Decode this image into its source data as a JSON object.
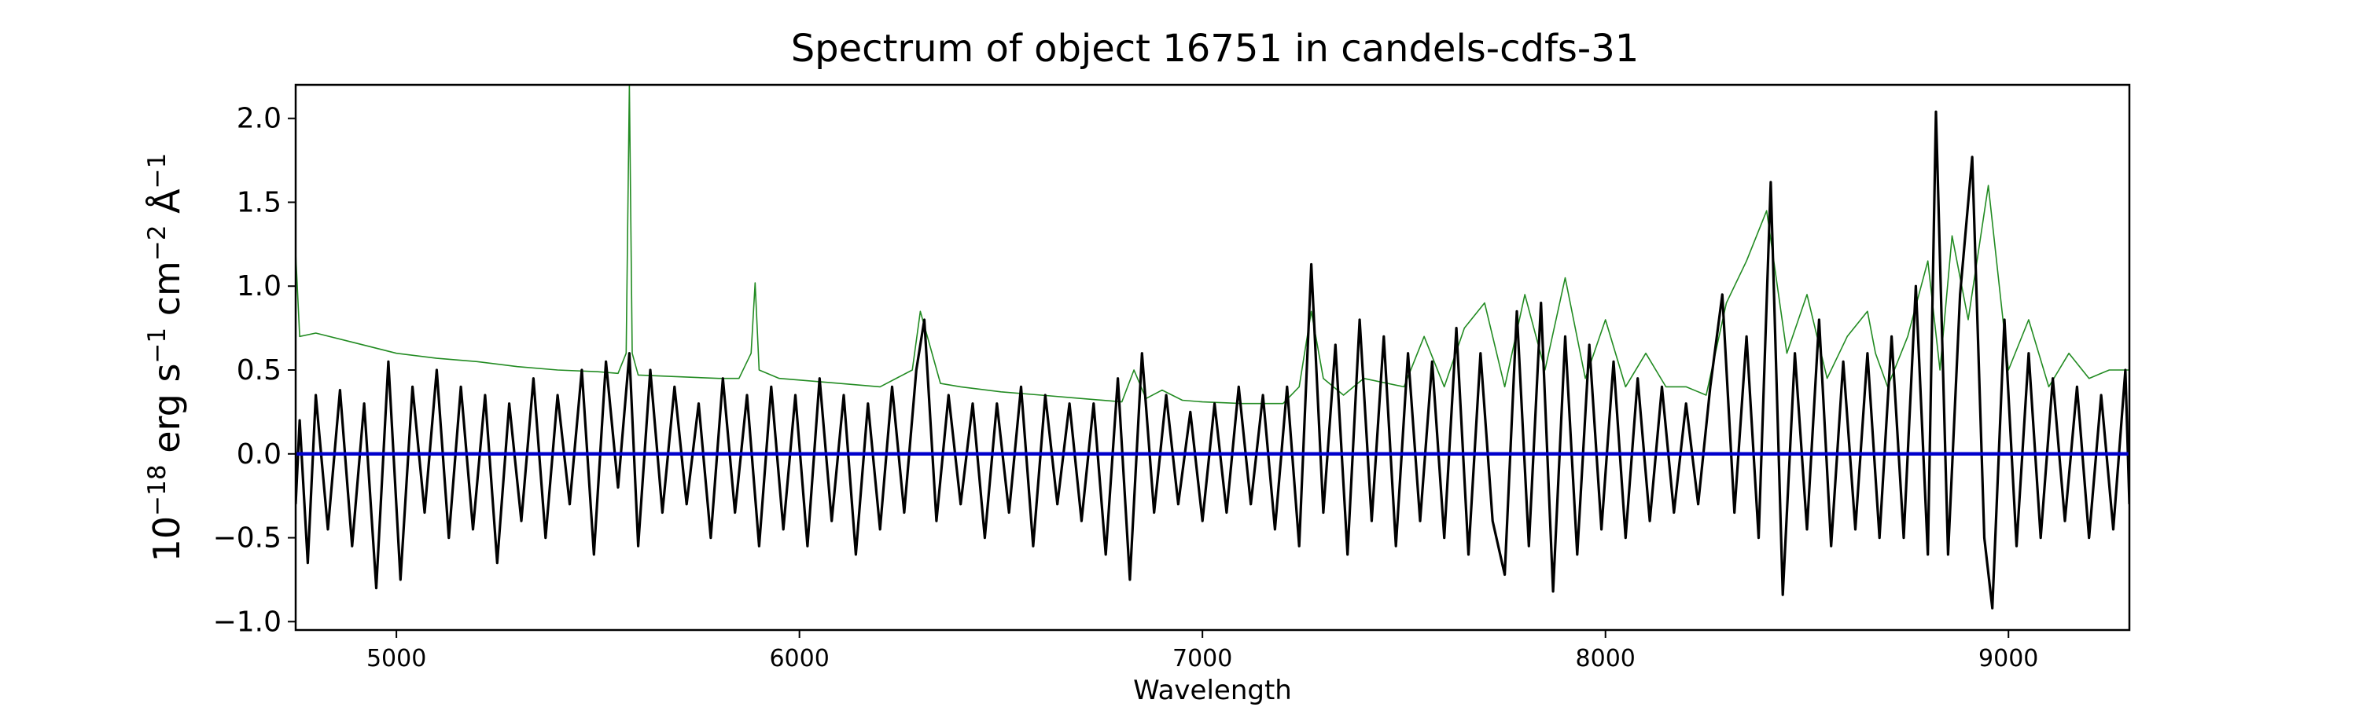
{
  "chart_data": {
    "type": "line",
    "title": "Spectrum of object 16751 in candels-cdfs-31",
    "xlabel": "Wavelength",
    "ylabel": {
      "base": "10",
      "exp1": "−18",
      "part1": " erg s",
      "exp2": "−1",
      "part2": " cm",
      "exp3": "−2",
      "part3": " Å",
      "exp4": "−1"
    },
    "xlim": [
      4750,
      9300
    ],
    "ylim": [
      -1.05,
      2.2
    ],
    "xticks": [
      5000,
      6000,
      7000,
      8000,
      9000
    ],
    "xtick_labels": [
      "5000",
      "6000",
      "7000",
      "8000",
      "9000"
    ],
    "yticks": [
      -1.0,
      -0.5,
      0.0,
      0.5,
      1.0,
      1.5,
      2.0
    ],
    "ytick_labels": [
      "−1.0",
      "−0.5",
      "0.0",
      "0.5",
      "1.0",
      "1.5",
      "2.0"
    ],
    "grid": false,
    "series": [
      {
        "color": "#228b22",
        "values_note": "",
        "x": [
          4750,
          4760,
          4800,
          4900,
          5000,
          5100,
          5200,
          5300,
          5400,
          5500,
          5550,
          5570,
          5578,
          5585,
          5600,
          5700,
          5800,
          5850,
          5880,
          5890,
          5900,
          5950,
          6000,
          6100,
          6200,
          6280,
          6300,
          6350,
          6400,
          6500,
          6600,
          6700,
          6800,
          6830,
          6860,
          6900,
          6950,
          7000,
          7100,
          7200,
          7240,
          7270,
          7300,
          7350,
          7400,
          7500,
          7550,
          7600,
          7650,
          7700,
          7750,
          7800,
          7850,
          7900,
          7950,
          8000,
          8050,
          8100,
          8150,
          8200,
          8250,
          8300,
          8350,
          8400,
          8450,
          8500,
          8550,
          8600,
          8650,
          8670,
          8700,
          8750,
          8800,
          8830,
          8860,
          8900,
          8950,
          9000,
          9050,
          9100,
          9150,
          9200,
          9250,
          9300
        ],
        "y": [
          1.2,
          0.7,
          0.72,
          0.66,
          0.6,
          0.57,
          0.55,
          0.52,
          0.5,
          0.49,
          0.48,
          0.6,
          2.2,
          0.6,
          0.47,
          0.46,
          0.45,
          0.45,
          0.6,
          1.02,
          0.5,
          0.45,
          0.44,
          0.42,
          0.4,
          0.5,
          0.85,
          0.42,
          0.4,
          0.37,
          0.35,
          0.33,
          0.31,
          0.5,
          0.33,
          0.38,
          0.32,
          0.31,
          0.3,
          0.3,
          0.4,
          0.85,
          0.45,
          0.35,
          0.45,
          0.4,
          0.7,
          0.4,
          0.75,
          0.9,
          0.4,
          0.95,
          0.5,
          1.05,
          0.45,
          0.8,
          0.4,
          0.6,
          0.4,
          0.4,
          0.35,
          0.9,
          1.15,
          1.45,
          0.6,
          0.95,
          0.45,
          0.7,
          0.85,
          0.6,
          0.4,
          0.7,
          1.15,
          0.5,
          1.3,
          0.8,
          1.6,
          0.5,
          0.8,
          0.4,
          0.6,
          0.45,
          0.5,
          0.5
        ]
      },
      {
        "color": "#000000",
        "values_note": "",
        "x": [
          4750,
          4760,
          4780,
          4800,
          4830,
          4860,
          4890,
          4920,
          4950,
          4980,
          5010,
          5040,
          5070,
          5100,
          5130,
          5160,
          5190,
          5220,
          5250,
          5280,
          5310,
          5340,
          5370,
          5400,
          5430,
          5460,
          5490,
          5520,
          5550,
          5578,
          5600,
          5630,
          5660,
          5690,
          5720,
          5750,
          5780,
          5810,
          5840,
          5870,
          5900,
          5930,
          5960,
          5990,
          6020,
          6050,
          6080,
          6110,
          6140,
          6170,
          6200,
          6230,
          6260,
          6290,
          6310,
          6340,
          6370,
          6400,
          6430,
          6460,
          6490,
          6520,
          6550,
          6580,
          6610,
          6640,
          6670,
          6700,
          6730,
          6760,
          6790,
          6820,
          6850,
          6880,
          6910,
          6940,
          6970,
          7000,
          7030,
          7060,
          7090,
          7120,
          7150,
          7180,
          7210,
          7240,
          7270,
          7300,
          7330,
          7360,
          7390,
          7420,
          7450,
          7480,
          7510,
          7540,
          7570,
          7600,
          7630,
          7660,
          7690,
          7720,
          7750,
          7780,
          7810,
          7840,
          7870,
          7900,
          7930,
          7960,
          7990,
          8020,
          8050,
          8080,
          8110,
          8140,
          8170,
          8200,
          8230,
          8260,
          8290,
          8320,
          8350,
          8380,
          8410,
          8440,
          8470,
          8500,
          8530,
          8560,
          8590,
          8620,
          8650,
          8680,
          8710,
          8740,
          8770,
          8800,
          8820,
          8850,
          8880,
          8910,
          8940,
          8960,
          8990,
          9020,
          9050,
          9080,
          9110,
          9140,
          9170,
          9200,
          9230,
          9260,
          9290,
          9300
        ],
        "y": [
          -0.3,
          0.2,
          -0.65,
          0.35,
          -0.45,
          0.38,
          -0.55,
          0.3,
          -0.8,
          0.55,
          -0.75,
          0.4,
          -0.35,
          0.5,
          -0.5,
          0.4,
          -0.45,
          0.35,
          -0.65,
          0.3,
          -0.4,
          0.45,
          -0.5,
          0.35,
          -0.3,
          0.5,
          -0.6,
          0.55,
          -0.2,
          0.6,
          -0.55,
          0.5,
          -0.35,
          0.4,
          -0.3,
          0.3,
          -0.5,
          0.45,
          -0.35,
          0.35,
          -0.55,
          0.4,
          -0.45,
          0.35,
          -0.55,
          0.45,
          -0.4,
          0.35,
          -0.6,
          0.3,
          -0.45,
          0.4,
          -0.35,
          0.5,
          0.8,
          -0.4,
          0.35,
          -0.3,
          0.3,
          -0.5,
          0.3,
          -0.35,
          0.4,
          -0.55,
          0.35,
          -0.3,
          0.3,
          -0.4,
          0.3,
          -0.6,
          0.45,
          -0.75,
          0.6,
          -0.35,
          0.35,
          -0.3,
          0.25,
          -0.4,
          0.3,
          -0.35,
          0.4,
          -0.3,
          0.35,
          -0.45,
          0.4,
          -0.55,
          1.13,
          -0.35,
          0.65,
          -0.6,
          0.8,
          -0.4,
          0.7,
          -0.55,
          0.6,
          -0.4,
          0.55,
          -0.5,
          0.75,
          -0.6,
          0.6,
          -0.4,
          -0.72,
          0.85,
          -0.55,
          0.9,
          -0.82,
          0.7,
          -0.6,
          0.65,
          -0.45,
          0.55,
          -0.5,
          0.45,
          -0.4,
          0.4,
          -0.35,
          0.3,
          -0.3,
          0.4,
          0.95,
          -0.35,
          0.7,
          -0.5,
          1.62,
          -0.84,
          0.6,
          -0.45,
          0.8,
          -0.55,
          0.55,
          -0.45,
          0.6,
          -0.5,
          0.7,
          -0.5,
          1.0,
          -0.6,
          2.04,
          -0.6,
          0.95,
          1.77,
          -0.5,
          -0.92,
          0.8,
          -0.55,
          0.6,
          -0.5,
          0.45,
          -0.4,
          0.4,
          -0.5,
          0.35,
          -0.45,
          0.5,
          -0.3
        ]
      },
      {
        "color": "#0000cc",
        "values_note": "",
        "x": [
          4750,
          9300
        ],
        "y": [
          0.0,
          0.0
        ]
      }
    ]
  }
}
